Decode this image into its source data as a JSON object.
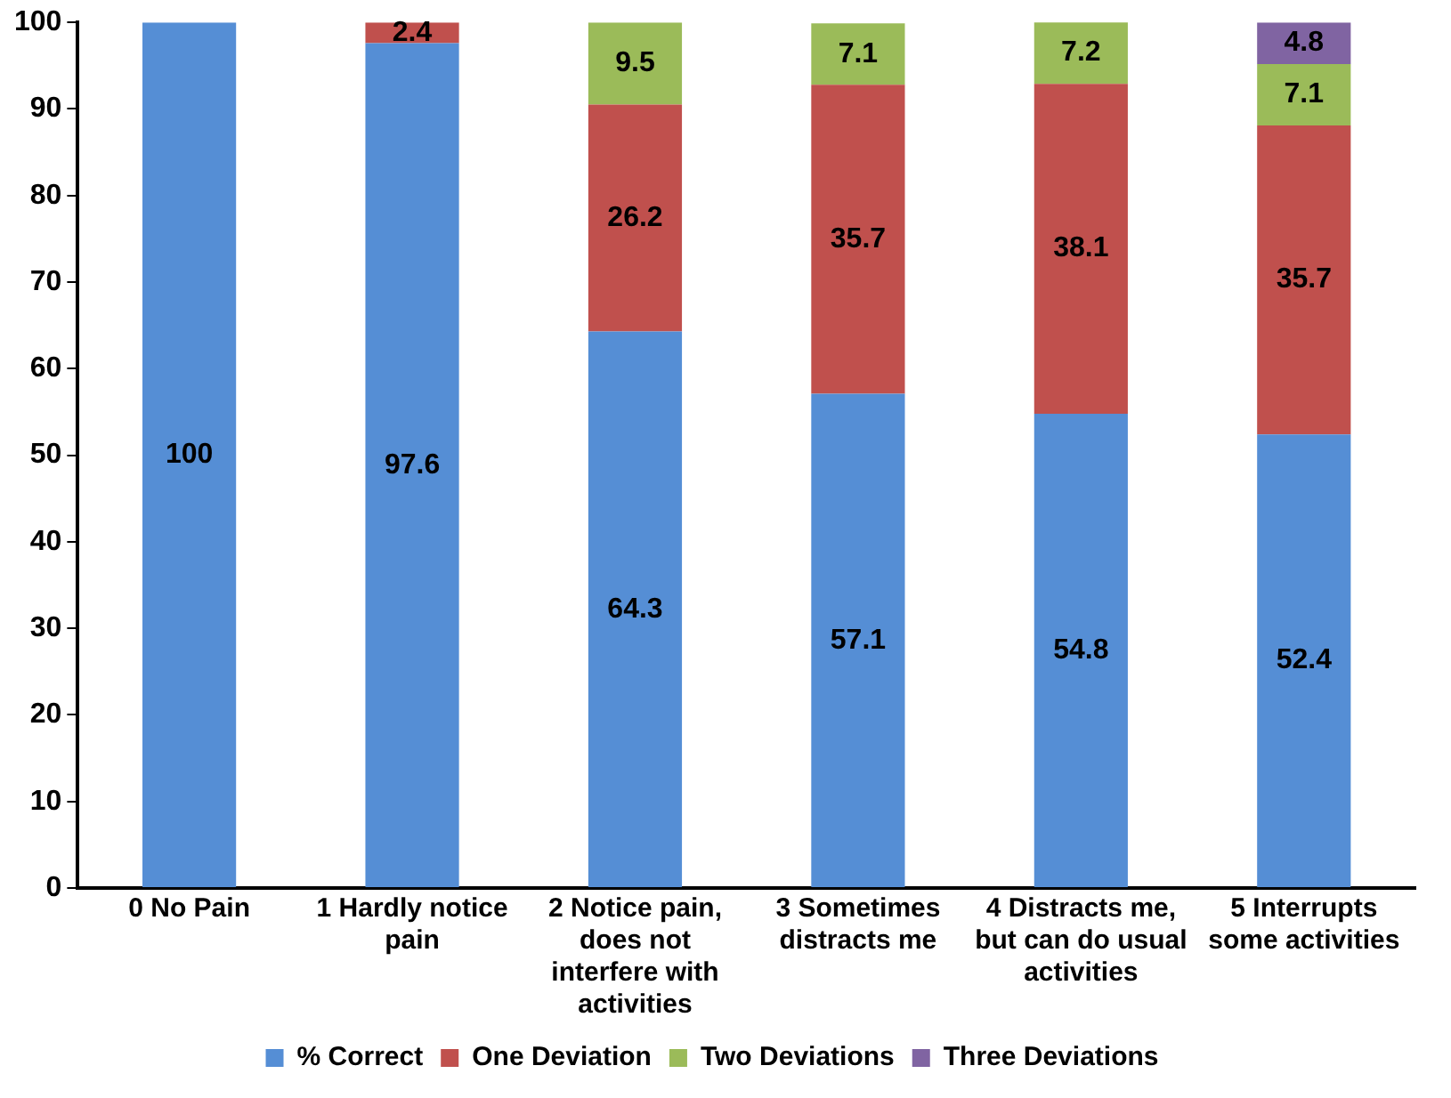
{
  "chart_data": {
    "type": "bar",
    "stacked": true,
    "categories": [
      "0 No Pain",
      "1 Hardly notice pain",
      "2 Notice pain, does not interfere with activities",
      "3 Sometimes distracts me",
      "4 Distracts me, but can do usual activities",
      "5 Interrupts some activities"
    ],
    "series": [
      {
        "name": "% Correct",
        "color": "#558ed5",
        "values": [
          100,
          97.6,
          64.3,
          57.1,
          54.8,
          52.4
        ]
      },
      {
        "name": "One Deviation",
        "color": "#c0504d",
        "values": [
          null,
          2.4,
          26.2,
          35.7,
          38.1,
          35.7
        ]
      },
      {
        "name": "Two Deviations",
        "color": "#9bbb59",
        "values": [
          null,
          null,
          9.5,
          7.1,
          7.2,
          7.1
        ]
      },
      {
        "name": "Three Deviations",
        "color": "#8064a2",
        "values": [
          null,
          null,
          null,
          null,
          null,
          4.8
        ]
      }
    ],
    "ylim": [
      0,
      100
    ],
    "yticks": [
      0,
      10,
      20,
      30,
      40,
      50,
      60,
      70,
      80,
      90,
      100
    ],
    "data_labels": true,
    "grid": false,
    "legend": "bottom"
  }
}
